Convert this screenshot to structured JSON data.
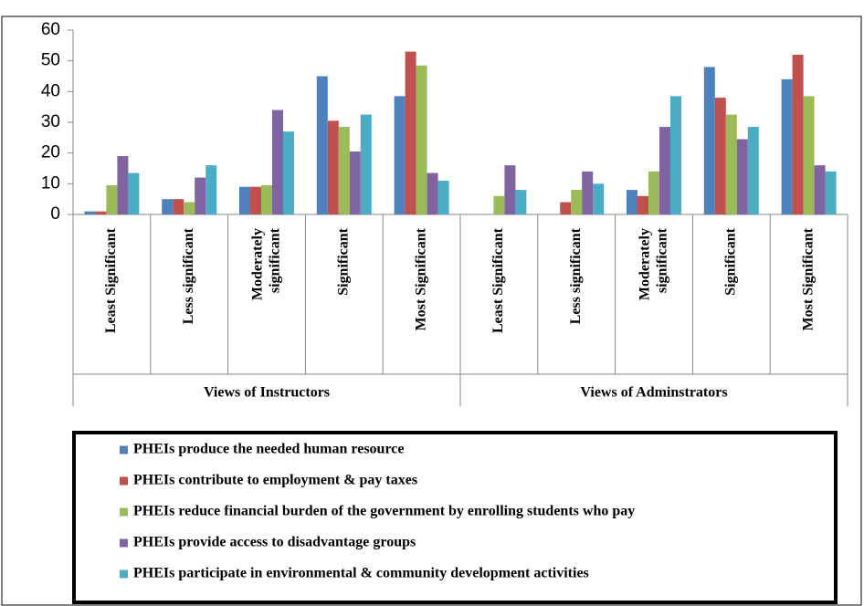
{
  "chart_data": {
    "type": "bar",
    "groups": [
      {
        "name": "Views of Instructors",
        "categories": [
          "Least Significant",
          "Less significant",
          "Moderately significant",
          "Significant",
          "Most Significant"
        ]
      },
      {
        "name": "Views of Adminstrators",
        "categories": [
          "Least Significant",
          "Less significant",
          "Moderately significant",
          "Significant",
          "Most Significant"
        ]
      }
    ],
    "series": [
      {
        "name": "PHEIs produce the needed human resource",
        "color": "#4f81bd",
        "values": [
          1,
          5,
          9,
          45,
          38.5,
          0,
          0,
          8,
          48,
          44
        ]
      },
      {
        "name": "PHEIs contribute to employment & pay taxes",
        "color": "#c0504d",
        "values": [
          1,
          5,
          9,
          30.5,
          53,
          0,
          4,
          6,
          38,
          52
        ]
      },
      {
        "name": "PHEIs reduce financial burden of the government by enrolling students who pay",
        "color": "#9bbb59",
        "values": [
          9.5,
          4,
          9.5,
          28.5,
          48.5,
          6,
          8,
          14,
          32.5,
          38.5
        ]
      },
      {
        "name": "PHEIs provide access to disadvantage groups",
        "color": "#8064a2",
        "values": [
          19,
          12,
          34,
          20.5,
          13.5,
          16,
          14,
          28.5,
          24.5,
          16
        ]
      },
      {
        "name": "PHEIs participate in environmental & community development activities",
        "color": "#4bacc6",
        "values": [
          13.5,
          16,
          27,
          32.5,
          11,
          8,
          10,
          38.5,
          28.5,
          14
        ]
      }
    ],
    "ylim": [
      0,
      60
    ],
    "yticks": [
      0,
      10,
      20,
      30,
      40,
      50,
      60
    ],
    "grid": false
  }
}
